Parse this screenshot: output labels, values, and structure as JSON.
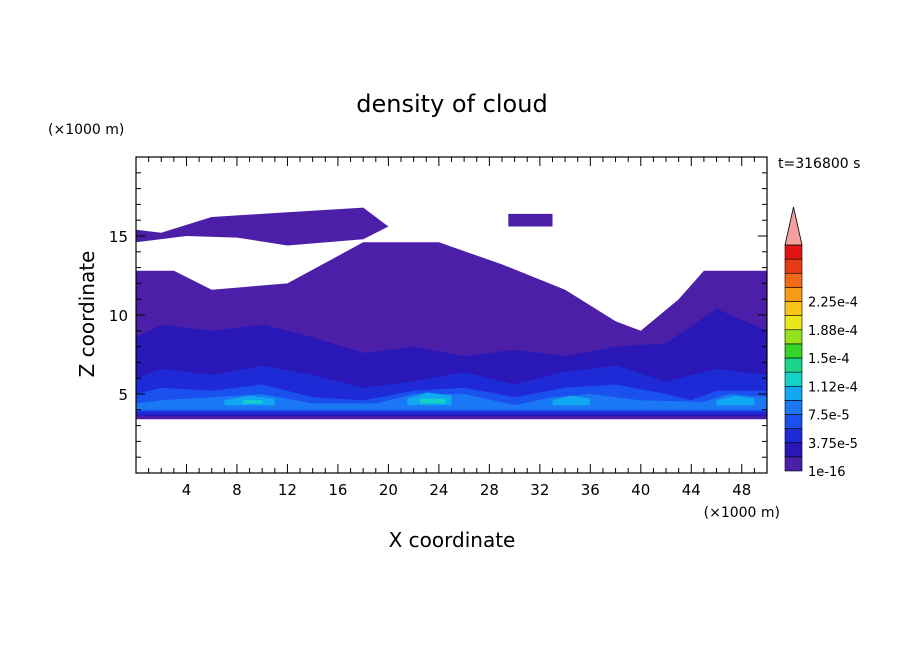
{
  "chart_data": {
    "type": "heatmap",
    "title": "density of cloud",
    "xlabel": "X coordinate",
    "ylabel": "Z coordinate",
    "x_unit": "(×1000 m)",
    "y_unit": "(×1000 m)",
    "time_label": "t=316800 s",
    "xlim": [
      0,
      50
    ],
    "ylim": [
      0,
      20
    ],
    "x_ticks": [
      4,
      8,
      12,
      16,
      20,
      24,
      28,
      32,
      36,
      40,
      44,
      48
    ],
    "y_ticks": [
      5,
      10,
      15
    ],
    "colorbar": {
      "levels": [
        "1e-16",
        "3.75e-5",
        "7.5e-5",
        "1.12e-4",
        "1.5e-4",
        "1.88e-4",
        "2.25e-4"
      ],
      "colors": [
        "#4b1fa8",
        "#2a17b8",
        "#1e2ad6",
        "#1a50ee",
        "#1a78f5",
        "#10a8f0",
        "#14d2c8",
        "#1ad68a",
        "#34d42a",
        "#96e21a",
        "#e8e81a",
        "#f8c41a",
        "#f89a14",
        "#f26a14",
        "#e83a14",
        "#e01414",
        "#f4a0a0"
      ]
    },
    "regions": [
      {
        "level": 0,
        "polygon": [
          [
            0,
            3.4
          ],
          [
            50,
            3.4
          ],
          [
            50,
            12.8
          ],
          [
            45,
            12.8
          ],
          [
            43,
            11.0
          ],
          [
            40,
            9.0
          ],
          [
            38,
            9.6
          ],
          [
            34,
            11.6
          ],
          [
            29,
            13.2
          ],
          [
            24,
            14.6
          ],
          [
            18,
            14.6
          ],
          [
            12,
            12.0
          ],
          [
            6,
            11.6
          ],
          [
            3,
            12.8
          ],
          [
            0,
            12.8
          ]
        ]
      },
      {
        "level": 0,
        "polygon": [
          [
            0,
            15.4
          ],
          [
            2,
            15.2
          ],
          [
            6,
            16.2
          ],
          [
            12,
            16.5
          ],
          [
            18,
            16.8
          ],
          [
            20,
            15.6
          ],
          [
            18,
            14.8
          ],
          [
            12,
            14.4
          ],
          [
            8,
            14.9
          ],
          [
            4,
            15.0
          ],
          [
            0,
            14.6
          ]
        ]
      },
      {
        "level": 0,
        "polygon": [
          [
            29.5,
            16.4
          ],
          [
            33,
            16.4
          ],
          [
            33,
            15.6
          ],
          [
            29.5,
            15.6
          ]
        ]
      },
      {
        "level": 1,
        "polygon": [
          [
            0,
            3.6
          ],
          [
            50,
            3.6
          ],
          [
            50,
            9.0
          ],
          [
            46,
            10.4
          ],
          [
            42,
            8.2
          ],
          [
            38,
            8.0
          ],
          [
            34,
            7.4
          ],
          [
            30,
            7.8
          ],
          [
            26,
            7.4
          ],
          [
            22,
            8.0
          ],
          [
            18,
            7.6
          ],
          [
            14,
            8.6
          ],
          [
            10,
            9.4
          ],
          [
            6,
            9.0
          ],
          [
            2,
            9.4
          ],
          [
            0,
            8.6
          ]
        ]
      },
      {
        "level": 2,
        "polygon": [
          [
            0,
            3.7
          ],
          [
            50,
            3.7
          ],
          [
            50,
            6.2
          ],
          [
            46,
            6.6
          ],
          [
            42,
            5.8
          ],
          [
            38,
            6.8
          ],
          [
            34,
            6.4
          ],
          [
            30,
            5.6
          ],
          [
            26,
            6.4
          ],
          [
            22,
            5.8
          ],
          [
            18,
            5.4
          ],
          [
            14,
            6.2
          ],
          [
            10,
            6.8
          ],
          [
            6,
            6.2
          ],
          [
            2,
            6.6
          ],
          [
            0,
            6.0
          ]
        ]
      },
      {
        "level": 3,
        "polygon": [
          [
            0,
            3.9
          ],
          [
            50,
            3.9
          ],
          [
            50,
            5.2
          ],
          [
            46,
            5.2
          ],
          [
            44,
            4.6
          ],
          [
            42,
            5.0
          ],
          [
            38,
            5.6
          ],
          [
            34,
            5.4
          ],
          [
            30,
            4.8
          ],
          [
            26,
            5.4
          ],
          [
            22,
            5.2
          ],
          [
            18,
            4.6
          ],
          [
            14,
            4.8
          ],
          [
            10,
            5.6
          ],
          [
            6,
            5.2
          ],
          [
            2,
            5.4
          ],
          [
            0,
            5.0
          ]
        ]
      },
      {
        "level": 4,
        "polygon": [
          [
            0,
            4.0
          ],
          [
            50,
            4.0
          ],
          [
            50,
            4.8
          ],
          [
            47,
            5.0
          ],
          [
            45,
            4.5
          ],
          [
            40,
            4.6
          ],
          [
            36,
            5.0
          ],
          [
            33,
            4.8
          ],
          [
            30,
            4.3
          ],
          [
            26,
            5.0
          ],
          [
            22,
            5.0
          ],
          [
            19,
            4.4
          ],
          [
            14,
            4.4
          ],
          [
            10,
            5.0
          ],
          [
            6,
            4.8
          ],
          [
            2,
            4.6
          ],
          [
            0,
            4.4
          ]
        ]
      },
      {
        "level": 5,
        "polygon": [
          [
            7,
            4.3
          ],
          [
            11,
            4.3
          ],
          [
            11,
            4.7
          ],
          [
            9,
            4.9
          ],
          [
            7,
            4.6
          ]
        ]
      },
      {
        "level": 5,
        "polygon": [
          [
            21.5,
            4.3
          ],
          [
            25,
            4.3
          ],
          [
            25,
            4.9
          ],
          [
            23,
            5.1
          ],
          [
            21.5,
            4.7
          ]
        ]
      },
      {
        "level": 5,
        "polygon": [
          [
            33,
            4.3
          ],
          [
            36,
            4.3
          ],
          [
            36,
            4.7
          ],
          [
            34.5,
            4.9
          ],
          [
            33,
            4.6
          ]
        ]
      },
      {
        "level": 5,
        "polygon": [
          [
            46,
            4.3
          ],
          [
            49,
            4.3
          ],
          [
            49,
            4.7
          ],
          [
            47.5,
            4.9
          ],
          [
            46,
            4.6
          ]
        ]
      },
      {
        "level": 6,
        "polygon": [
          [
            22.5,
            4.4
          ],
          [
            24.5,
            4.4
          ],
          [
            24.5,
            4.7
          ],
          [
            22.5,
            4.7
          ]
        ]
      },
      {
        "level": 6,
        "polygon": [
          [
            8.5,
            4.4
          ],
          [
            10,
            4.4
          ],
          [
            10,
            4.6
          ],
          [
            8.5,
            4.6
          ]
        ]
      }
    ]
  }
}
